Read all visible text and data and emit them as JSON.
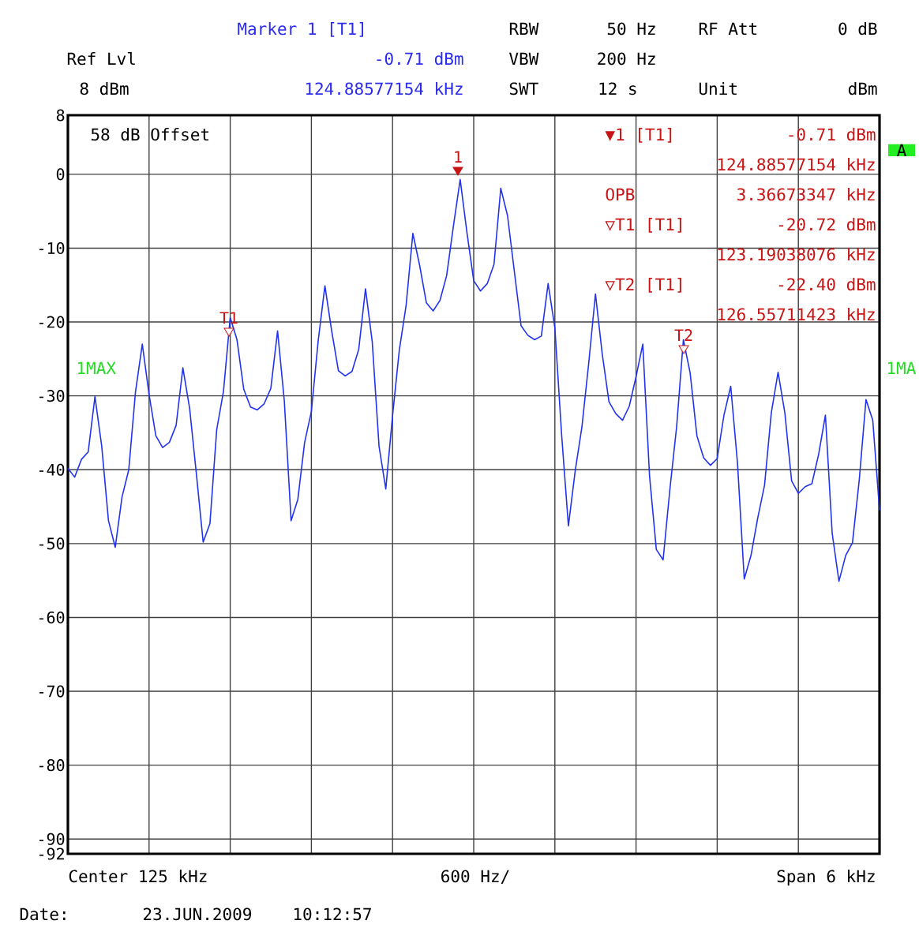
{
  "chart_data": {
    "type": "line",
    "categories": [
      null,
      null,
      null,
      null,
      null,
      null,
      null,
      null,
      null,
      null,
      null,
      null,
      null,
      null,
      null,
      null,
      null,
      null,
      null,
      null,
      null,
      null,
      null,
      null,
      null,
      null,
      null,
      null,
      null,
      null,
      null,
      null,
      null,
      null,
      null,
      null,
      null,
      null,
      null,
      null,
      null,
      null,
      null,
      null,
      null,
      null,
      null,
      null,
      null,
      null,
      null,
      null,
      null,
      null,
      null,
      null,
      null,
      null,
      null,
      null,
      null,
      null,
      null,
      null,
      null,
      null,
      null,
      null,
      null,
      null,
      null,
      null,
      null,
      null,
      null,
      null,
      null,
      null,
      null,
      null,
      null,
      null,
      null,
      null,
      null,
      null,
      null,
      null,
      null,
      null,
      null,
      null,
      null,
      null,
      null,
      null,
      null,
      null,
      null,
      null,
      null,
      null,
      null,
      null,
      null,
      null,
      null,
      null,
      null,
      null,
      null,
      null,
      null,
      null,
      null,
      null,
      null,
      null,
      null,
      null,
      null
    ],
    "series": [
      {
        "color": "#2233ee",
        "values": [
          -39.8,
          -41.0,
          -38.6,
          -37.6,
          -30.1,
          -36.8,
          -46.9,
          -50.5,
          -43.7,
          -40.0,
          -29.4,
          -23.0,
          -29.8,
          -35.4,
          -37.0,
          -36.3,
          -34.0,
          -26.2,
          -31.7,
          -40.6,
          -49.8,
          -47.3,
          -34.6,
          -29.4,
          -19.4,
          -22.4,
          -29.1,
          -31.5,
          -31.9,
          -31.1,
          -29.0,
          -21.2,
          -30.7,
          -46.9,
          -44.0,
          -36.3,
          -32.1,
          -22.6,
          -15.1,
          -21.2,
          -26.6,
          -27.3,
          -26.7,
          -23.7,
          -15.5,
          -22.7,
          -36.8,
          -42.6,
          -32.7,
          -23.8,
          -17.8,
          -8.0,
          -12.3,
          -17.4,
          -18.5,
          -17.1,
          -13.7,
          -7.0,
          -0.7,
          -7.9,
          -14.4,
          -15.8,
          -14.8,
          -12.2,
          -1.9,
          -5.6,
          -13.1,
          -20.5,
          -21.8,
          -22.4,
          -21.9,
          -14.8,
          -20.8,
          -35.3,
          -47.6,
          -40.2,
          -34.2,
          -25.6,
          -16.2,
          -24.3,
          -30.8,
          -32.4,
          -33.3,
          -31.4,
          -27.4,
          -23.0,
          -40.9,
          -50.8,
          -52.2,
          -42.7,
          -34.2,
          -22.4,
          -26.9,
          -35.4,
          -38.4,
          -39.4,
          -38.5,
          -32.6,
          -28.7,
          -39.1,
          -54.8,
          -51.6,
          -46.5,
          -42.1,
          -32.3,
          -26.8,
          -32.3,
          -41.5,
          -43.2,
          -42.3,
          -41.9,
          -37.9,
          -32.6,
          -48.6,
          -55.1,
          -51.6,
          -49.9,
          -41.4,
          -30.5,
          -33.3,
          -45.5
        ]
      }
    ],
    "ylim": [
      -92,
      8
    ],
    "yticks": [
      8,
      0,
      -10,
      -20,
      -30,
      -40,
      -50,
      -60,
      -70,
      -80,
      -90,
      -92
    ],
    "grid": true,
    "tick_labels": "y",
    "annotations": [
      "Marker 1 [T1]",
      "-0.71 dBm",
      "124.88577154 kHz",
      "Ref Lvl",
      "8 dBm",
      "RBW",
      "50 Hz",
      "VBW",
      "200 Hz",
      "SWT",
      "12 s",
      "RF Att",
      "0 dB",
      "Unit",
      "dBm",
      "58 dB Offset",
      "▼1 [T1]",
      "-0.71 dBm",
      "124.88577154 kHz",
      "OPB",
      "3.36673347 kHz",
      "▽T1 [T1]",
      "-20.72 dBm",
      "123.19038076 kHz",
      "▽T2 [T1]",
      "-22.40 dBm",
      "126.55711423 kHz",
      "1MAX",
      "1MA",
      "A",
      "Center 125 kHz",
      "600 Hz/",
      "Span 6 kHz",
      "Date:",
      "23.JUN.2009",
      "10:12:57",
      "1",
      "T1",
      "T2"
    ]
  }
}
